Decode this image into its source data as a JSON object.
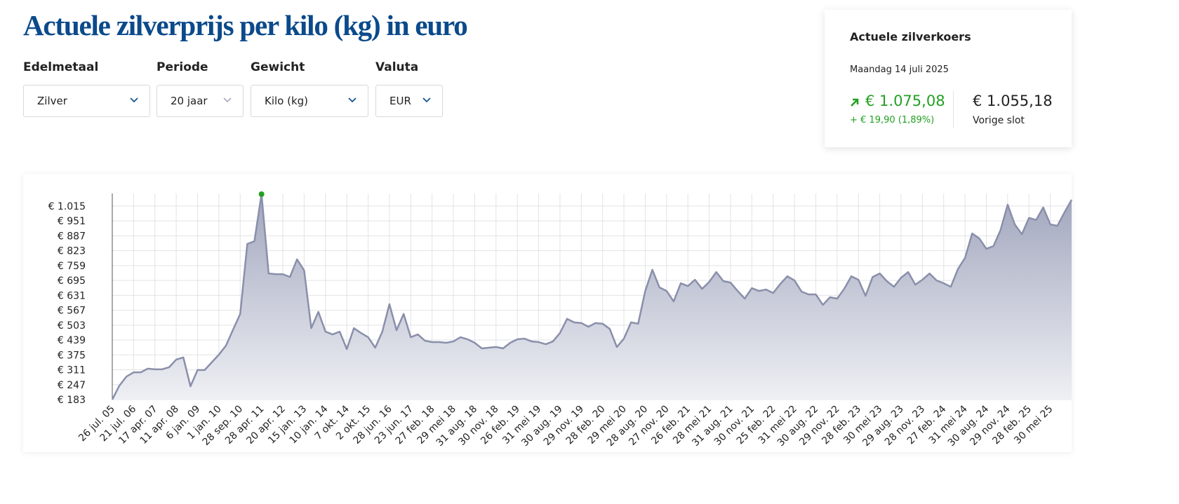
{
  "header": {
    "title": "Actuele zilverprijs per kilo (kg) in euro"
  },
  "filters": [
    {
      "label": "Edelmetaal",
      "value": "Zilver"
    },
    {
      "label": "Periode",
      "value": "20 jaar"
    },
    {
      "label": "Gewicht",
      "value": "Kilo (kg)"
    },
    {
      "label": "Valuta",
      "value": "EUR"
    }
  ],
  "quote": {
    "title": "Actuele zilverkoers",
    "date": "Maandag 14 juli 2025",
    "price": "€ 1.075,08",
    "change": "+ € 19,90 (1,89%)",
    "previous": "€ 1.055,18",
    "previous_label": "Vorige slot"
  },
  "chart_data": {
    "type": "area",
    "color": "#8a8fab",
    "grid": true,
    "categories": [
      "26 jul. 05",
      null,
      null,
      "21 jul. 06",
      null,
      null,
      "17 apr. 07",
      null,
      null,
      "11 apr. 08",
      null,
      null,
      "6 jan. 09",
      null,
      null,
      "1 jan. 10",
      null,
      null,
      "28 sep. 10",
      null,
      null,
      "28 apr. 11",
      null,
      null,
      "20 apr. 12",
      null,
      null,
      "15 jan. 13",
      null,
      null,
      "10 jan. 14",
      null,
      null,
      "7 okt. 14",
      null,
      null,
      "2 okt. 15",
      null,
      null,
      "28 jun. 16",
      null,
      null,
      "23 jun. 17",
      null,
      null,
      "27 feb. 18",
      null,
      null,
      "29 mei 18",
      null,
      null,
      "31 aug. 18",
      null,
      null,
      "30 nov. 18",
      null,
      null,
      "26 feb. 19",
      null,
      null,
      "31 mei 19",
      null,
      null,
      "30 aug. 19",
      null,
      null,
      "29 nov. 19",
      null,
      null,
      "28 feb. 20",
      null,
      null,
      "29 mei 20",
      null,
      null,
      "28 aug. 20",
      null,
      null,
      "27 nov. 20",
      null,
      null,
      "26 feb. 21",
      null,
      null,
      "28 mei 21",
      null,
      null,
      "31 aug. 21",
      null,
      null,
      "30 nov. 21",
      null,
      null,
      "25 feb. 22",
      null,
      null,
      "31 mei 22",
      null,
      null,
      "30 aug. 22",
      null,
      null,
      "29 nov. 22",
      null,
      null,
      "28 feb. 23",
      null,
      null,
      "30 mei 23",
      null,
      null,
      "29 aug. 23",
      null,
      null,
      "28 nov. 23",
      null,
      null,
      "27 feb. 24",
      null,
      null,
      "31 mei 24",
      null,
      null,
      "30 aug. 24",
      null,
      null,
      "29 nov. 24",
      null,
      null,
      "28 feb. 25",
      null,
      null,
      "30 mei 25",
      null,
      null,
      null
    ],
    "values": [
      183,
      243,
      282,
      300,
      300,
      316,
      313,
      313,
      322,
      355,
      364,
      240,
      310,
      310,
      343,
      376,
      415,
      484,
      551,
      852,
      864,
      1066,
      725,
      722,
      722,
      710,
      786,
      738,
      490,
      560,
      475,
      463,
      475,
      400,
      490,
      469,
      451,
      406,
      475,
      593,
      481,
      551,
      451,
      463,
      436,
      430,
      430,
      427,
      433,
      451,
      442,
      427,
      403,
      406,
      409,
      403,
      427,
      442,
      445,
      433,
      430,
      421,
      433,
      469,
      530,
      515,
      512,
      496,
      512,
      509,
      487,
      409,
      445,
      515,
      509,
      650,
      741,
      665,
      650,
      605,
      683,
      671,
      698,
      659,
      689,
      731,
      692,
      686,
      650,
      617,
      662,
      650,
      656,
      641,
      680,
      713,
      695,
      647,
      635,
      635,
      590,
      623,
      617,
      659,
      713,
      698,
      629,
      710,
      725,
      692,
      668,
      707,
      731,
      677,
      698,
      725,
      695,
      683,
      668,
      744,
      792,
      897,
      876,
      831,
      843,
      912,
      1021,
      936,
      894,
      964,
      955,
      1009,
      936,
      930,
      988,
      1042
    ],
    "ylim": [
      183,
      1069
    ],
    "yticks": [
      {
        "value": 183,
        "label": "€ 183"
      },
      {
        "value": 247,
        "label": "€ 247"
      },
      {
        "value": 311,
        "label": "€ 311"
      },
      {
        "value": 375,
        "label": "€ 375"
      },
      {
        "value": 439,
        "label": "€ 439"
      },
      {
        "value": 503,
        "label": "€ 503"
      },
      {
        "value": 567,
        "label": "€ 567"
      },
      {
        "value": 631,
        "label": "€ 631"
      },
      {
        "value": 695,
        "label": "€ 695"
      },
      {
        "value": 759,
        "label": "€ 759"
      },
      {
        "value": 823,
        "label": "€ 823"
      },
      {
        "value": 887,
        "label": "€ 887"
      },
      {
        "value": 951,
        "label": "€ 951"
      },
      {
        "value": 1015,
        "label": "€ 1.015"
      }
    ]
  }
}
